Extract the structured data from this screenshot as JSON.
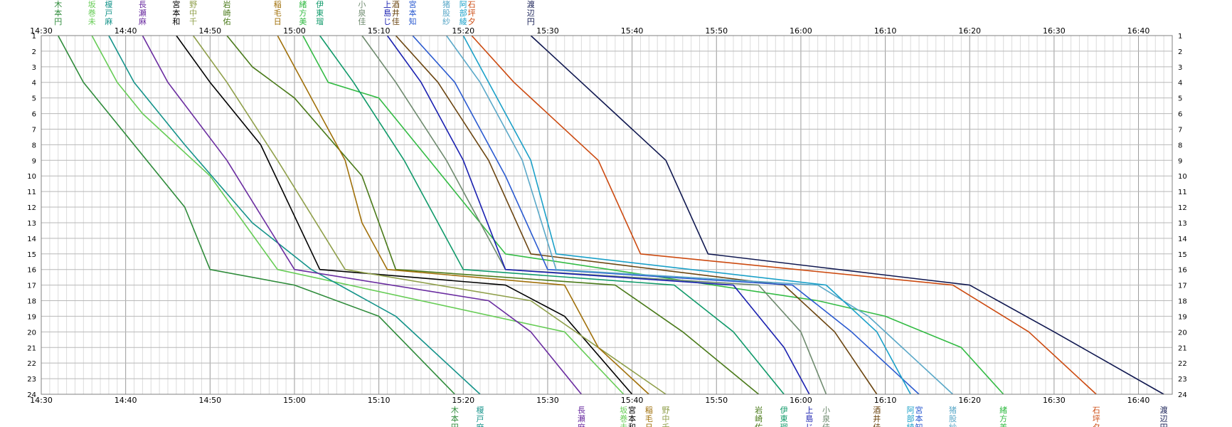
{
  "chart_data": {
    "type": "line",
    "title": "",
    "xlabel": "",
    "ylabel": "",
    "grid": true,
    "x_unit": "HH:MM",
    "x_ticks": [
      "14:30",
      "14:40",
      "14:50",
      "15:00",
      "15:10",
      "15:20",
      "15:30",
      "15:40",
      "15:50",
      "16:00",
      "16:10",
      "16:20",
      "16:30",
      "16:40"
    ],
    "x_range": [
      "14:30",
      "16:44"
    ],
    "y_ticks": [
      "1",
      "2",
      "3",
      "4",
      "5",
      "6",
      "7",
      "8",
      "9",
      "10",
      "11",
      "12",
      "13",
      "14",
      "15",
      "16",
      "17",
      "18",
      "19",
      "20",
      "21",
      "22",
      "23",
      "24"
    ],
    "y_range": [
      1,
      24
    ],
    "series": [
      {
        "name": "木本円",
        "top_lines": [
          "木",
          "本",
          "円"
        ],
        "bottom_lines": [
          "木",
          "本",
          "円"
        ],
        "color": "#2e8b3a",
        "points": [
          [
            "14:32",
            1
          ],
          [
            "14:35",
            4
          ],
          [
            "14:41",
            8
          ],
          [
            "14:47",
            12
          ],
          [
            "14:50",
            16
          ],
          [
            "15:00",
            17
          ],
          [
            "15:10",
            19
          ],
          [
            "15:19",
            24
          ]
        ]
      },
      {
        "name": "坂巻未",
        "top_lines": [
          "坂",
          "巻",
          "未"
        ],
        "bottom_lines": [
          "坂",
          "巻",
          "未"
        ],
        "color": "#66cc55",
        "points": [
          [
            "14:36",
            1
          ],
          [
            "14:39",
            4
          ],
          [
            "14:42",
            6
          ],
          [
            "14:50",
            10
          ],
          [
            "14:58",
            16
          ],
          [
            "15:32",
            20
          ],
          [
            "15:39",
            24
          ]
        ]
      },
      {
        "name": "榎戸麻",
        "top_lines": [
          "榎",
          "戸",
          "麻"
        ],
        "bottom_lines": [
          "榎",
          "戸",
          "麻"
        ],
        "color": "#14938a",
        "points": [
          [
            "14:38",
            1
          ],
          [
            "14:41",
            4
          ],
          [
            "14:47",
            8
          ],
          [
            "14:55",
            13
          ],
          [
            "15:02",
            16
          ],
          [
            "15:12",
            19
          ],
          [
            "15:22",
            24
          ]
        ]
      },
      {
        "name": "長瀬麻",
        "top_lines": [
          "長",
          "瀬",
          "麻"
        ],
        "bottom_lines": [
          "長",
          "瀬",
          "麻"
        ],
        "color": "#6a2ca0",
        "points": [
          [
            "14:42",
            1
          ],
          [
            "14:45",
            4
          ],
          [
            "14:52",
            9
          ],
          [
            "15:00",
            16
          ],
          [
            "15:23",
            18
          ],
          [
            "15:28",
            20
          ],
          [
            "15:34",
            24
          ]
        ]
      },
      {
        "name": "宮本和",
        "top_lines": [
          "宮",
          "本",
          "和"
        ],
        "bottom_lines": [
          "宮",
          "本",
          "和"
        ],
        "color": "#000000",
        "points": [
          [
            "14:46",
            1
          ],
          [
            "14:50",
            4
          ],
          [
            "14:56",
            8
          ],
          [
            "15:03",
            16
          ],
          [
            "15:25",
            17
          ],
          [
            "15:32",
            19
          ],
          [
            "15:40",
            24
          ]
        ]
      },
      {
        "name": "野中千",
        "top_lines": [
          "野",
          "中",
          "千"
        ],
        "bottom_lines": [
          "野",
          "中",
          "千"
        ],
        "color": "#8f9f4a",
        "points": [
          [
            "14:48",
            1
          ],
          [
            "14:52",
            4
          ],
          [
            "14:58",
            9
          ],
          [
            "15:06",
            16
          ],
          [
            "15:28",
            18
          ],
          [
            "15:36",
            21
          ],
          [
            "15:44",
            24
          ]
        ]
      },
      {
        "name": "岩崎佑",
        "top_lines": [
          "岩",
          "崎",
          "佑"
        ],
        "bottom_lines": [
          "岩",
          "崎",
          "佑"
        ],
        "color": "#4a7a1a",
        "points": [
          [
            "14:52",
            1
          ],
          [
            "14:55",
            3
          ],
          [
            "15:00",
            5
          ],
          [
            "15:08",
            10
          ],
          [
            "15:12",
            16
          ],
          [
            "15:38",
            17
          ],
          [
            "15:46",
            20
          ],
          [
            "15:55",
            24
          ]
        ]
      },
      {
        "name": "稲毛日",
        "top_lines": [
          "稲",
          "毛",
          "日"
        ],
        "bottom_lines": [
          "稲",
          "毛",
          "日"
        ],
        "color": "#a0700a",
        "points": [
          [
            "14:58",
            1
          ],
          [
            "15:02",
            5
          ],
          [
            "15:06",
            9
          ],
          [
            "15:08",
            13
          ],
          [
            "15:11",
            16
          ],
          [
            "15:32",
            17
          ],
          [
            "15:36",
            21
          ],
          [
            "15:42",
            24
          ]
        ]
      },
      {
        "name": "緒方美",
        "top_lines": [
          "緒",
          "方",
          "美"
        ],
        "bottom_lines": [
          "緒",
          "方",
          "美"
        ],
        "color": "#33bb44",
        "points": [
          [
            "15:01",
            1
          ],
          [
            "15:04",
            4
          ],
          [
            "15:10",
            5
          ],
          [
            "15:16",
            9
          ],
          [
            "15:25",
            15
          ],
          [
            "16:02",
            18
          ],
          [
            "16:10",
            19
          ],
          [
            "16:19",
            21
          ],
          [
            "16:24",
            24
          ]
        ]
      },
      {
        "name": "伊東瑠",
        "top_lines": [
          "伊",
          "東",
          "瑠"
        ],
        "bottom_lines": [
          "伊",
          "東",
          "瑠"
        ],
        "color": "#109a6a",
        "points": [
          [
            "15:03",
            1
          ],
          [
            "15:07",
            4
          ],
          [
            "15:13",
            9
          ],
          [
            "15:20",
            16
          ],
          [
            "15:45",
            17
          ],
          [
            "15:52",
            20
          ],
          [
            "15:58",
            24
          ]
        ]
      },
      {
        "name": "小泉佳",
        "top_lines": [
          "小",
          "泉",
          "佳"
        ],
        "bottom_lines": [
          "小",
          "泉",
          "佳"
        ],
        "color": "#6e8a6e",
        "points": [
          [
            "15:08",
            1
          ],
          [
            "15:12",
            4
          ],
          [
            "15:18",
            9
          ],
          [
            "15:25",
            16
          ],
          [
            "15:55",
            17
          ],
          [
            "16:00",
            20
          ],
          [
            "16:03",
            24
          ]
        ]
      },
      {
        "name": "上島じ",
        "top_lines": [
          "上",
          "島",
          "じ"
        ],
        "bottom_lines": [
          "上",
          "島",
          "じ"
        ],
        "color": "#1a20b0",
        "points": [
          [
            "15:11",
            1
          ],
          [
            "15:15",
            4
          ],
          [
            "15:20",
            9
          ],
          [
            "15:25",
            16
          ],
          [
            "15:52",
            17
          ],
          [
            "15:58",
            21
          ],
          [
            "16:01",
            24
          ]
        ]
      },
      {
        "name": "酒井佳",
        "top_lines": [
          "酒",
          "井",
          "佳"
        ],
        "bottom_lines": [
          "酒",
          "井",
          "佳"
        ],
        "color": "#6b4510",
        "points": [
          [
            "15:12",
            1
          ],
          [
            "15:17",
            4
          ],
          [
            "15:23",
            9
          ],
          [
            "15:28",
            15
          ],
          [
            "15:58",
            17
          ],
          [
            "16:04",
            20
          ],
          [
            "16:09",
            24
          ]
        ]
      },
      {
        "name": "宮本知",
        "top_lines": [
          "宮",
          "本",
          "知"
        ],
        "bottom_lines": [
          "宮",
          "本",
          "知"
        ],
        "color": "#2a5ad0",
        "points": [
          [
            "15:14",
            1
          ],
          [
            "15:19",
            4
          ],
          [
            "15:25",
            10
          ],
          [
            "15:30",
            16
          ],
          [
            "15:59",
            17
          ],
          [
            "16:06",
            20
          ],
          [
            "16:14",
            24
          ]
        ]
      },
      {
        "name": "猪股紗",
        "top_lines": [
          "猪",
          "股",
          "紗"
        ],
        "bottom_lines": [
          "猪",
          "股",
          "紗"
        ],
        "color": "#5aa8c8",
        "points": [
          [
            "15:18",
            1
          ],
          [
            "15:22",
            4
          ],
          [
            "15:27",
            9
          ],
          [
            "15:31",
            16
          ],
          [
            "16:02",
            17
          ],
          [
            "16:08",
            19
          ],
          [
            "16:18",
            24
          ]
        ]
      },
      {
        "name": "阿部綾",
        "top_lines": [
          "阿",
          "部",
          "綾"
        ],
        "bottom_lines": [
          "阿",
          "部",
          "綾"
        ],
        "color": "#1aa0c8",
        "points": [
          [
            "15:20",
            1
          ],
          [
            "15:23",
            4
          ],
          [
            "15:28",
            9
          ],
          [
            "15:31",
            15
          ],
          [
            "16:03",
            17
          ],
          [
            "16:09",
            20
          ],
          [
            "16:13",
            24
          ]
        ]
      },
      {
        "name": "石坪夕",
        "top_lines": [
          "石",
          "坪",
          "夕"
        ],
        "bottom_lines": [
          "石",
          "坪",
          "夕"
        ],
        "color": "#cc4a10",
        "points": [
          [
            "15:21",
            1
          ],
          [
            "15:26",
            4
          ],
          [
            "15:36",
            9
          ],
          [
            "15:41",
            15
          ],
          [
            "16:18",
            17
          ],
          [
            "16:27",
            20
          ],
          [
            "16:35",
            24
          ]
        ]
      },
      {
        "name": "渡辺円",
        "top_lines": [
          "渡",
          "辺",
          "円"
        ],
        "bottom_lines": [
          "渡",
          "辺",
          "円"
        ],
        "color": "#101850",
        "points": [
          [
            "15:28",
            1
          ],
          [
            "15:34",
            4
          ],
          [
            "15:44",
            9
          ],
          [
            "15:49",
            15
          ],
          [
            "16:20",
            17
          ],
          [
            "16:30",
            20
          ],
          [
            "16:43",
            24
          ]
        ]
      }
    ]
  }
}
